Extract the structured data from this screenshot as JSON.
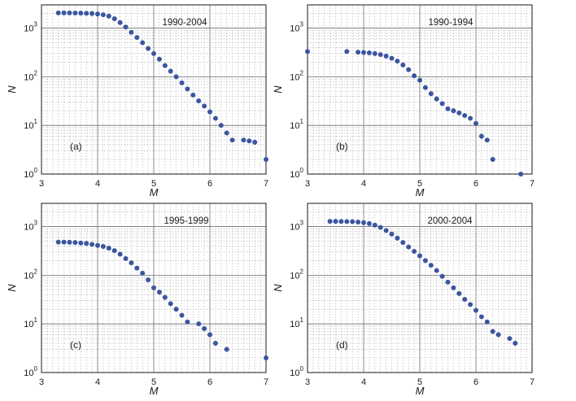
{
  "chart_data": [
    {
      "type": "scatter",
      "title": "1990-2004",
      "panel_label": "(a)",
      "xlabel": "M",
      "ylabel": "N",
      "xlim": [
        3,
        7
      ],
      "ylim": [
        1,
        3000
      ],
      "yscale": "log",
      "grid": true,
      "xticks": [
        "3",
        "4",
        "5",
        "6",
        "7"
      ],
      "yticks": [
        {
          "base": "10",
          "exp": "0"
        },
        {
          "base": "10",
          "exp": "1"
        },
        {
          "base": "10",
          "exp": "2"
        },
        {
          "base": "10",
          "exp": "3"
        }
      ],
      "marker_color": "#3b55a0",
      "x": [
        3.3,
        3.4,
        3.5,
        3.6,
        3.7,
        3.8,
        3.9,
        4.0,
        4.1,
        4.2,
        4.3,
        4.4,
        4.5,
        4.6,
        4.7,
        4.8,
        4.9,
        5.0,
        5.1,
        5.2,
        5.3,
        5.4,
        5.5,
        5.6,
        5.7,
        5.8,
        5.9,
        6.0,
        6.1,
        6.2,
        6.3,
        6.4,
        6.6,
        6.7,
        6.8,
        7.0
      ],
      "y": [
        2050,
        2050,
        2050,
        2040,
        2030,
        2010,
        1990,
        1950,
        1880,
        1760,
        1560,
        1300,
        1050,
        820,
        640,
        500,
        380,
        300,
        230,
        170,
        130,
        100,
        75,
        56,
        42,
        32,
        25,
        19,
        14,
        10,
        7,
        5,
        5,
        4.8,
        4.5,
        2
      ]
    },
    {
      "type": "scatter",
      "title": "1990-1994",
      "panel_label": "(b)",
      "xlabel": "M",
      "ylabel": "N",
      "xlim": [
        3,
        7
      ],
      "ylim": [
        1,
        3000
      ],
      "yscale": "log",
      "grid": true,
      "xticks": [
        "3",
        "4",
        "5",
        "6",
        "7"
      ],
      "yticks": [
        {
          "base": "10",
          "exp": "0"
        },
        {
          "base": "10",
          "exp": "1"
        },
        {
          "base": "10",
          "exp": "2"
        },
        {
          "base": "10",
          "exp": "3"
        }
      ],
      "marker_color": "#3b55a0",
      "x": [
        3.0,
        3.7,
        3.9,
        4.0,
        4.1,
        4.2,
        4.3,
        4.4,
        4.5,
        4.6,
        4.7,
        4.8,
        4.9,
        5.0,
        5.1,
        5.2,
        5.3,
        5.4,
        5.5,
        5.6,
        5.7,
        5.8,
        5.9,
        6.0,
        6.1,
        6.2,
        6.3,
        6.8
      ],
      "y": [
        330,
        330,
        320,
        315,
        310,
        300,
        285,
        265,
        240,
        210,
        175,
        140,
        105,
        85,
        60,
        45,
        35,
        28,
        22,
        20,
        18,
        16,
        14,
        11,
        6,
        5,
        2,
        1
      ]
    },
    {
      "type": "scatter",
      "title": "1995-1999",
      "panel_label": "(c)",
      "xlabel": "M",
      "ylabel": "N",
      "xlim": [
        3,
        7
      ],
      "ylim": [
        1,
        3000
      ],
      "yscale": "log",
      "grid": true,
      "xticks": [
        "3",
        "4",
        "5",
        "6",
        "7"
      ],
      "yticks": [
        {
          "base": "10",
          "exp": "0"
        },
        {
          "base": "10",
          "exp": "1"
        },
        {
          "base": "10",
          "exp": "2"
        },
        {
          "base": "10",
          "exp": "3"
        }
      ],
      "marker_color": "#3b55a0",
      "x": [
        3.3,
        3.4,
        3.5,
        3.6,
        3.7,
        3.8,
        3.9,
        4.0,
        4.1,
        4.2,
        4.3,
        4.4,
        4.5,
        4.6,
        4.7,
        4.8,
        4.9,
        5.0,
        5.1,
        5.2,
        5.3,
        5.4,
        5.5,
        5.6,
        5.8,
        5.9,
        6.0,
        6.1,
        6.3,
        7.0
      ],
      "y": [
        480,
        480,
        475,
        470,
        460,
        450,
        430,
        410,
        390,
        360,
        320,
        270,
        220,
        180,
        140,
        110,
        80,
        55,
        45,
        35,
        26,
        20,
        15,
        11,
        10,
        8,
        6,
        4,
        3,
        2
      ]
    },
    {
      "type": "scatter",
      "title": "2000-2004",
      "panel_label": "(d)",
      "xlabel": "M",
      "ylabel": "N",
      "xlim": [
        3,
        7
      ],
      "ylim": [
        1,
        3000
      ],
      "yscale": "log",
      "grid": true,
      "xticks": [
        "3",
        "4",
        "5",
        "6",
        "7"
      ],
      "yticks": [
        {
          "base": "10",
          "exp": "0"
        },
        {
          "base": "10",
          "exp": "1"
        },
        {
          "base": "10",
          "exp": "2"
        },
        {
          "base": "10",
          "exp": "3"
        }
      ],
      "marker_color": "#3b55a0",
      "x": [
        3.4,
        3.5,
        3.6,
        3.7,
        3.8,
        3.9,
        4.0,
        4.1,
        4.2,
        4.3,
        4.4,
        4.5,
        4.6,
        4.7,
        4.8,
        4.9,
        5.0,
        5.1,
        5.2,
        5.3,
        5.4,
        5.5,
        5.6,
        5.7,
        5.8,
        5.9,
        6.0,
        6.1,
        6.2,
        6.3,
        6.4,
        6.6,
        6.7
      ],
      "y": [
        1280,
        1280,
        1275,
        1270,
        1260,
        1240,
        1200,
        1150,
        1070,
        960,
        830,
        700,
        580,
        470,
        380,
        310,
        250,
        200,
        160,
        125,
        95,
        72,
        55,
        42,
        32,
        25,
        19,
        14,
        11,
        7,
        6,
        5,
        4
      ]
    }
  ]
}
